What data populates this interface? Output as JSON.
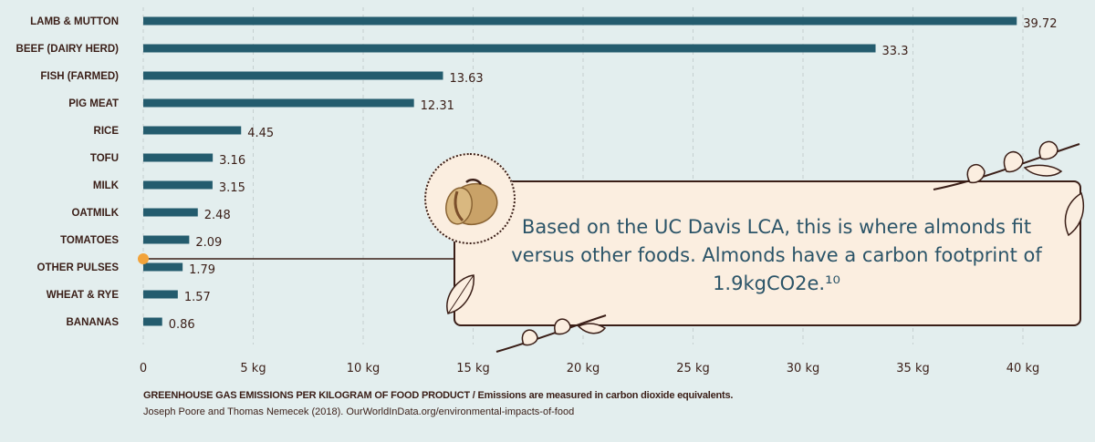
{
  "chart_data": {
    "type": "bar",
    "orientation": "horizontal",
    "categories": [
      "LAMB & MUTTON",
      "BEEF (DAIRY HERD)",
      "FISH (FARMED)",
      "PIG MEAT",
      "RICE",
      "TOFU",
      "MILK",
      "OATMILK",
      "TOMATOES",
      "OTHER PULSES",
      "WHEAT & RYE",
      "BANANAS"
    ],
    "values": [
      39.72,
      33.3,
      13.63,
      12.31,
      4.45,
      3.16,
      3.15,
      2.48,
      2.09,
      1.79,
      1.57,
      0.86
    ],
    "value_labels": [
      "39.72",
      "33.3",
      "13.63",
      "12.31",
      "4.45",
      "3.16",
      "3.15",
      "2.48",
      "2.09",
      "1.79",
      "1.57",
      "0.86"
    ],
    "xlim": [
      0,
      40
    ],
    "xticks": [
      0,
      5,
      10,
      15,
      20,
      25,
      30,
      35,
      40
    ],
    "xtick_labels": [
      "0",
      "5 kg",
      "10 kg",
      "15 kg",
      "20 kg",
      "25 kg",
      "30 kg",
      "35 kg",
      "40 kg"
    ],
    "grid": "vertical dashed",
    "marker_value": 1.9,
    "colors": {
      "bar": "#245c6e",
      "text": "#3a1e17",
      "marker": "#f2a33a"
    }
  },
  "footnote": {
    "bold": "GREENHOUSE GAS EMISSIONS PER KILOGRAM OF FOOD PRODUCT / Emissions are measured in carbon dioxide equivalents.",
    "source": "Joseph Poore and Thomas Nemecek (2018). OurWorldInData.org/environmental-impacts-of-food"
  },
  "callout": {
    "text": "Based on the UC Davis LCA, this is where almonds fit versus other foods. Almonds have a carbon footprint of 1.9kgCO2e.¹⁰",
    "image": "almond-icon",
    "decoration": "leaf-branch-icon"
  }
}
